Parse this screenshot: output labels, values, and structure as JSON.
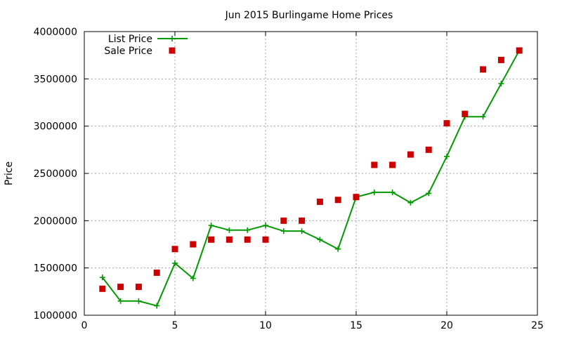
{
  "chart_data": {
    "type": "line",
    "title": "Jun 2015 Burlingame Home Prices",
    "xlabel": "",
    "ylabel": "Price",
    "xlim": [
      0,
      25
    ],
    "ylim": [
      1000000,
      4000000
    ],
    "x_ticks": [
      0,
      5,
      10,
      15,
      20,
      25
    ],
    "y_ticks": [
      1000000,
      1500000,
      2000000,
      2500000,
      3000000,
      3500000,
      4000000
    ],
    "grid": true,
    "legend_position": "top-left",
    "series": [
      {
        "name": "List Price",
        "style": "line+crosses",
        "color": "#009900",
        "x": [
          1,
          2,
          3,
          4,
          5,
          6,
          7,
          8,
          9,
          10,
          11,
          12,
          13,
          14,
          15,
          16,
          17,
          18,
          19,
          20,
          21,
          22,
          23,
          24
        ],
        "values": [
          1400000,
          1150000,
          1150000,
          1100000,
          1550000,
          1390000,
          1950000,
          1900000,
          1900000,
          1950000,
          1890000,
          1890000,
          1800000,
          1700000,
          2250000,
          2300000,
          2300000,
          2190000,
          2290000,
          2680000,
          3100000,
          3100000,
          3450000,
          3800000
        ]
      },
      {
        "name": "Sale Price",
        "style": "squares",
        "color": "#cc0000",
        "x": [
          1,
          2,
          3,
          4,
          5,
          6,
          7,
          8,
          9,
          10,
          11,
          12,
          13,
          14,
          15,
          16,
          17,
          18,
          19,
          20,
          21,
          22,
          23,
          24
        ],
        "values": [
          1280000,
          1300000,
          1300000,
          1450000,
          1700000,
          1750000,
          1800000,
          1800000,
          1800000,
          1800000,
          2000000,
          2000000,
          2200000,
          2220000,
          2250000,
          2590000,
          2590000,
          2700000,
          2750000,
          3030000,
          3130000,
          3600000,
          3700000,
          3800000
        ]
      }
    ]
  }
}
